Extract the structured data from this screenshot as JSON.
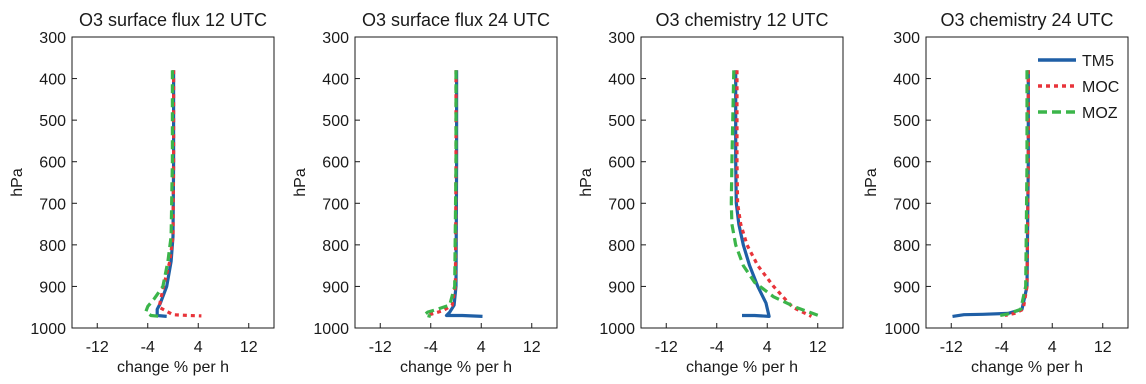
{
  "chart_data": [
    {
      "type": "line",
      "title": "O3 surface flux 12 UTC",
      "xlabel": "change % per h",
      "ylabel": "hPa",
      "xlim": [
        -16,
        16
      ],
      "ylim": [
        1000,
        300
      ],
      "xticks": [
        -12,
        -4,
        4,
        12
      ],
      "yticks": [
        300,
        400,
        500,
        600,
        700,
        800,
        900,
        1000
      ],
      "series": [
        {
          "name": "TM5",
          "color": "#1f5fa6",
          "dash": "solid",
          "x": [
            0.1,
            0.1,
            0.0,
            -0.3,
            -1.0,
            -2.0,
            -2.5,
            -2.5,
            -1.0
          ],
          "y": [
            380,
            600,
            780,
            840,
            900,
            940,
            955,
            970,
            972
          ]
        },
        {
          "name": "MOC",
          "color": "#e8343a",
          "dash": "dot",
          "x": [
            0.1,
            0.1,
            0.0,
            -0.5,
            -1.5,
            -2.2,
            0.0,
            2.5,
            4.5
          ],
          "y": [
            380,
            600,
            780,
            840,
            900,
            950,
            968,
            970,
            971
          ]
        },
        {
          "name": "MOZ",
          "color": "#3bb54a",
          "dash": "dash",
          "x": [
            -0.1,
            -0.1,
            -0.3,
            -0.8,
            -1.6,
            -3.0,
            -4.0,
            -4.3,
            -3.5,
            -2.0
          ],
          "y": [
            380,
            600,
            780,
            840,
            900,
            930,
            948,
            960,
            970,
            972
          ]
        }
      ]
    },
    {
      "type": "line",
      "title": "O3 surface flux 24 UTC",
      "xlabel": "change % per h",
      "ylabel": "hPa",
      "xlim": [
        -16,
        16
      ],
      "ylim": [
        1000,
        300
      ],
      "xticks": [
        -12,
        -4,
        4,
        12
      ],
      "yticks": [
        300,
        400,
        500,
        600,
        700,
        800,
        900,
        1000
      ],
      "series": [
        {
          "name": "TM5",
          "color": "#1f5fa6",
          "dash": "solid",
          "x": [
            0.1,
            0.1,
            0.0,
            -0.3,
            -1.0,
            -1.5,
            1.0,
            4.2
          ],
          "y": [
            380,
            600,
            900,
            945,
            962,
            970,
            970,
            972
          ]
        },
        {
          "name": "MOC",
          "color": "#e8343a",
          "dash": "dot",
          "x": [
            0.0,
            0.0,
            -0.1,
            -0.6,
            -2.0,
            -3.5,
            -4.2
          ],
          "y": [
            380,
            600,
            900,
            945,
            958,
            965,
            968
          ]
        },
        {
          "name": "MOZ",
          "color": "#3bb54a",
          "dash": "dash",
          "x": [
            0.0,
            0.0,
            -0.2,
            -1.0,
            -3.0,
            -4.5,
            -5.0,
            -4.0
          ],
          "y": [
            380,
            600,
            900,
            945,
            955,
            962,
            968,
            972
          ]
        }
      ]
    },
    {
      "type": "line",
      "title": "O3 chemistry 12 UTC",
      "xlabel": "change % per h",
      "ylabel": "hPa",
      "xlim": [
        -16,
        16
      ],
      "ylim": [
        1000,
        300
      ],
      "xticks": [
        -12,
        -4,
        4,
        12
      ],
      "yticks": [
        300,
        400,
        500,
        600,
        700,
        800,
        900,
        1000
      ],
      "series": [
        {
          "name": "TM5",
          "color": "#1f5fa6",
          "dash": "solid",
          "x": [
            -1.0,
            -1.0,
            -0.9,
            -0.5,
            0.2,
            1.2,
            2.5,
            3.8,
            4.3,
            2.0,
            0.0
          ],
          "y": [
            380,
            600,
            700,
            750,
            800,
            850,
            900,
            940,
            972,
            970,
            970
          ]
        },
        {
          "name": "MOC",
          "color": "#e8343a",
          "dash": "dot",
          "x": [
            -0.8,
            -0.8,
            -0.7,
            -0.2,
            0.8,
            2.5,
            5.0,
            8.0,
            11.0
          ],
          "y": [
            380,
            600,
            700,
            750,
            800,
            850,
            900,
            950,
            972
          ]
        },
        {
          "name": "MOZ",
          "color": "#3bb54a",
          "dash": "dash",
          "x": [
            -1.3,
            -1.6,
            -1.7,
            -1.6,
            -1.0,
            0.2,
            2.0,
            5.0,
            8.5,
            12.5
          ],
          "y": [
            380,
            600,
            700,
            750,
            800,
            850,
            890,
            925,
            950,
            972
          ]
        }
      ]
    },
    {
      "type": "line",
      "title": "O3 chemistry 24 UTC",
      "xlabel": "change % per h",
      "ylabel": "hPa",
      "xlim": [
        -16,
        16
      ],
      "ylim": [
        1000,
        300
      ],
      "xticks": [
        -12,
        -4,
        4,
        12
      ],
      "yticks": [
        300,
        400,
        500,
        600,
        700,
        800,
        900,
        1000
      ],
      "legend": {
        "position": "top-right",
        "entries": [
          "TM5",
          "MOC",
          "MOZ"
        ]
      },
      "series": [
        {
          "name": "TM5",
          "color": "#1f5fa6",
          "dash": "solid",
          "x": [
            0.2,
            0.2,
            0.0,
            -0.8,
            -3.0,
            -7.0,
            -10.0,
            -11.8
          ],
          "y": [
            380,
            600,
            900,
            955,
            965,
            967,
            968,
            972
          ]
        },
        {
          "name": "MOC",
          "color": "#e8343a",
          "dash": "dot",
          "x": [
            0.2,
            0.2,
            0.0,
            -0.6,
            -2.0,
            -3.5
          ],
          "y": [
            380,
            600,
            900,
            955,
            965,
            970
          ]
        },
        {
          "name": "MOZ",
          "color": "#3bb54a",
          "dash": "dash",
          "x": [
            0.0,
            0.0,
            -0.2,
            -1.0,
            -3.0,
            -5.0
          ],
          "y": [
            380,
            600,
            900,
            955,
            966,
            972
          ]
        }
      ]
    }
  ]
}
